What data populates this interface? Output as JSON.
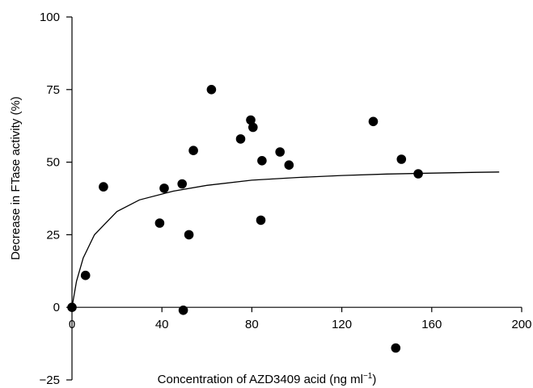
{
  "chart_data": {
    "type": "scatter",
    "title": "",
    "xlabel": {
      "text": "Concentration of AZD3409 acid (ng ml",
      "superscript": "−1",
      "suffix": ")"
    },
    "ylabel": "Decrease in FTase activity (%)",
    "xlim": [
      0,
      200
    ],
    "ylim": [
      -25,
      100
    ],
    "x_ticks": [
      0,
      40,
      80,
      120,
      160,
      200
    ],
    "x_tick_labels": [
      "0",
      "40",
      "80",
      "120",
      "160",
      "200"
    ],
    "y_ticks": [
      -25,
      0,
      25,
      50,
      75,
      100
    ],
    "y_tick_labels": [
      "−25",
      "0",
      "25",
      "50",
      "75",
      "100"
    ],
    "grid": false,
    "legend": "none",
    "point_color": "#000000",
    "series": [
      {
        "kind": "points",
        "points": [
          [
            0,
            0
          ],
          [
            6,
            11
          ],
          [
            14,
            41.5
          ],
          [
            39,
            29
          ],
          [
            41,
            41
          ],
          [
            49,
            42.5
          ],
          [
            49.5,
            -1
          ],
          [
            52,
            25
          ],
          [
            54,
            54
          ],
          [
            62,
            75
          ],
          [
            75,
            58
          ],
          [
            79.5,
            64.5
          ],
          [
            80.5,
            62
          ],
          [
            84,
            30
          ],
          [
            84.5,
            50.5
          ],
          [
            92.5,
            53.5
          ],
          [
            96.5,
            49
          ],
          [
            134,
            64
          ],
          [
            144,
            -14
          ],
          [
            146.5,
            51
          ],
          [
            154,
            46
          ]
        ]
      },
      {
        "kind": "fitted-curve",
        "points": [
          [
            0,
            0
          ],
          [
            2,
            9
          ],
          [
            5,
            17
          ],
          [
            10,
            25
          ],
          [
            20,
            33
          ],
          [
            30,
            37
          ],
          [
            45,
            40
          ],
          [
            60,
            42
          ],
          [
            80,
            43.8
          ],
          [
            100,
            44.7
          ],
          [
            120,
            45.4
          ],
          [
            140,
            45.9
          ],
          [
            160,
            46.2
          ],
          [
            180,
            46.5
          ],
          [
            190,
            46.6
          ]
        ]
      }
    ]
  }
}
